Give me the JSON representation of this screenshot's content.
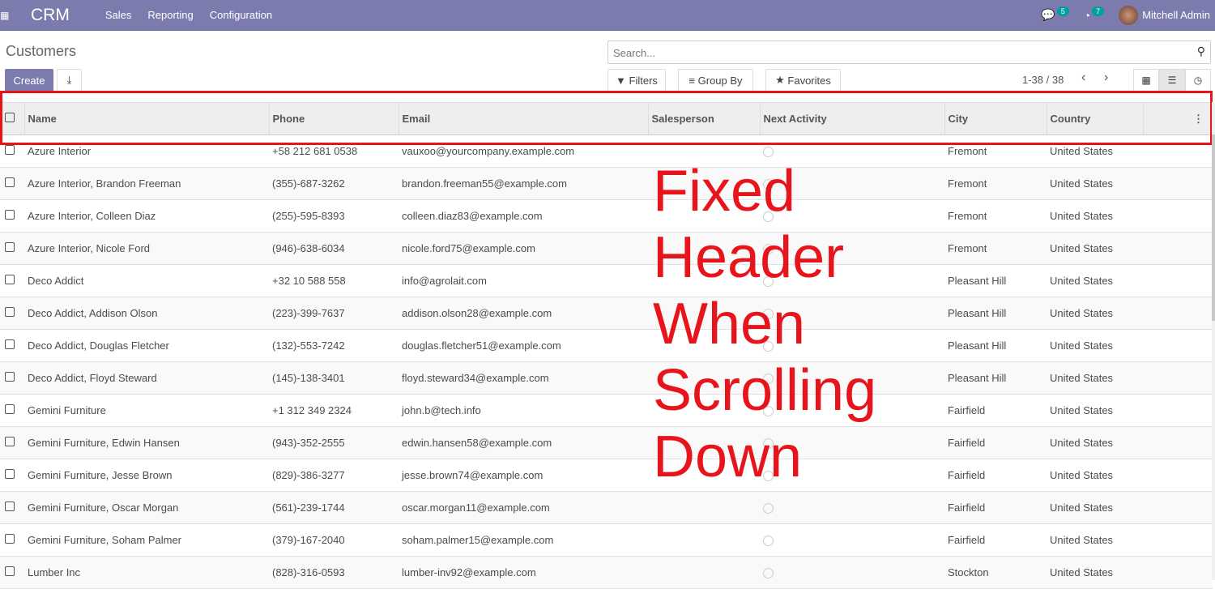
{
  "nav": {
    "brand": "CRM",
    "menus": [
      "Sales",
      "Reporting",
      "Configuration"
    ],
    "messages_count": "5",
    "activities_count": "7",
    "user": "Mitchell Admin"
  },
  "page": {
    "title": "Customers",
    "create": "Create",
    "search_placeholder": "Search...",
    "filters": "Filters",
    "group_by": "Group By",
    "favorites": "Favorites",
    "pager": "1-38 / 38"
  },
  "columns": [
    "Name",
    "Phone",
    "Email",
    "Salesperson",
    "Next Activity",
    "City",
    "Country"
  ],
  "rows": [
    [
      "Azure Interior",
      "+58 212 681 0538",
      "vauxoo@yourcompany.example.com",
      "",
      "",
      "Fremont",
      "United States"
    ],
    [
      "Azure Interior, Brandon Freeman",
      "(355)-687-3262",
      "brandon.freeman55@example.com",
      "",
      "",
      "Fremont",
      "United States"
    ],
    [
      "Azure Interior, Colleen Diaz",
      "(255)-595-8393",
      "colleen.diaz83@example.com",
      "",
      "",
      "Fremont",
      "United States"
    ],
    [
      "Azure Interior, Nicole Ford",
      "(946)-638-6034",
      "nicole.ford75@example.com",
      "",
      "",
      "Fremont",
      "United States"
    ],
    [
      "Deco Addict",
      "+32 10 588 558",
      "info@agrolait.com",
      "",
      "",
      "Pleasant Hill",
      "United States"
    ],
    [
      "Deco Addict, Addison Olson",
      "(223)-399-7637",
      "addison.olson28@example.com",
      "",
      "",
      "Pleasant Hill",
      "United States"
    ],
    [
      "Deco Addict, Douglas Fletcher",
      "(132)-553-7242",
      "douglas.fletcher51@example.com",
      "",
      "",
      "Pleasant Hill",
      "United States"
    ],
    [
      "Deco Addict, Floyd Steward",
      "(145)-138-3401",
      "floyd.steward34@example.com",
      "",
      "",
      "Pleasant Hill",
      "United States"
    ],
    [
      "Gemini Furniture",
      "+1 312 349 2324",
      "john.b@tech.info",
      "",
      "",
      "Fairfield",
      "United States"
    ],
    [
      "Gemini Furniture, Edwin Hansen",
      "(943)-352-2555",
      "edwin.hansen58@example.com",
      "",
      "",
      "Fairfield",
      "United States"
    ],
    [
      "Gemini Furniture, Jesse Brown",
      "(829)-386-3277",
      "jesse.brown74@example.com",
      "",
      "",
      "Fairfield",
      "United States"
    ],
    [
      "Gemini Furniture, Oscar Morgan",
      "(561)-239-1744",
      "oscar.morgan11@example.com",
      "",
      "",
      "Fairfield",
      "United States"
    ],
    [
      "Gemini Furniture, Soham Palmer",
      "(379)-167-2040",
      "soham.palmer15@example.com",
      "",
      "",
      "Fairfield",
      "United States"
    ],
    [
      "Lumber Inc",
      "(828)-316-0593",
      "lumber-inv92@example.com",
      "",
      "",
      "Stockton",
      "United States"
    ]
  ],
  "annotation": {
    "line1": "Fixed Header",
    "line2": "When Scrolling",
    "line3": "Down"
  },
  "colors": {
    "nav": "#7c7bad",
    "badge": "#00a09d",
    "annotation": "#e8141c"
  }
}
